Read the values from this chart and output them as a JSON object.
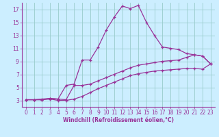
{
  "xlabel": "Windchill (Refroidissement éolien,°C)",
  "bg_color": "#cceeff",
  "grid_color": "#99cccc",
  "line_color": "#993399",
  "spine_color": "#993399",
  "xlim": [
    -0.5,
    23.5
  ],
  "ylim": [
    2.0,
    18.0
  ],
  "xticks": [
    0,
    1,
    2,
    3,
    4,
    5,
    6,
    7,
    8,
    9,
    10,
    11,
    12,
    13,
    14,
    15,
    16,
    17,
    18,
    19,
    20,
    21,
    22,
    23
  ],
  "yticks": [
    3,
    5,
    7,
    9,
    11,
    13,
    15,
    17
  ],
  "line1_x": [
    0,
    1,
    2,
    3,
    4,
    5,
    6,
    7,
    8,
    9,
    10,
    11,
    12,
    13,
    14,
    15,
    16,
    17,
    18,
    19,
    20,
    21,
    22,
    23
  ],
  "line1_y": [
    3.1,
    3.1,
    3.2,
    3.3,
    3.2,
    5.3,
    5.5,
    9.2,
    9.2,
    11.2,
    13.8,
    15.8,
    17.5,
    17.1,
    17.6,
    15.0,
    13.0,
    11.2,
    11.0,
    10.8,
    10.2,
    10.0,
    9.8,
    8.6
  ],
  "line2_x": [
    0,
    1,
    2,
    3,
    4,
    5,
    6,
    7,
    8,
    9,
    10,
    11,
    12,
    13,
    14,
    15,
    16,
    17,
    18,
    19,
    20,
    21,
    22,
    23
  ],
  "line2_y": [
    3.1,
    3.1,
    3.1,
    3.3,
    3.2,
    3.1,
    5.3,
    5.3,
    5.5,
    6.0,
    6.5,
    7.0,
    7.5,
    8.0,
    8.4,
    8.6,
    8.8,
    9.0,
    9.1,
    9.2,
    9.6,
    10.0,
    9.8,
    8.6
  ],
  "line3_x": [
    0,
    1,
    2,
    3,
    4,
    5,
    6,
    7,
    8,
    9,
    10,
    11,
    12,
    13,
    14,
    15,
    16,
    17,
    18,
    19,
    20,
    21,
    22,
    23
  ],
  "line3_y": [
    3.1,
    3.1,
    3.1,
    3.2,
    3.0,
    3.0,
    3.2,
    3.6,
    4.2,
    4.8,
    5.3,
    5.8,
    6.3,
    6.8,
    7.1,
    7.3,
    7.5,
    7.6,
    7.7,
    7.8,
    7.9,
    7.9,
    7.8,
    8.6
  ],
  "tick_fontsize": 5.5,
  "xlabel_fontsize": 5.5
}
